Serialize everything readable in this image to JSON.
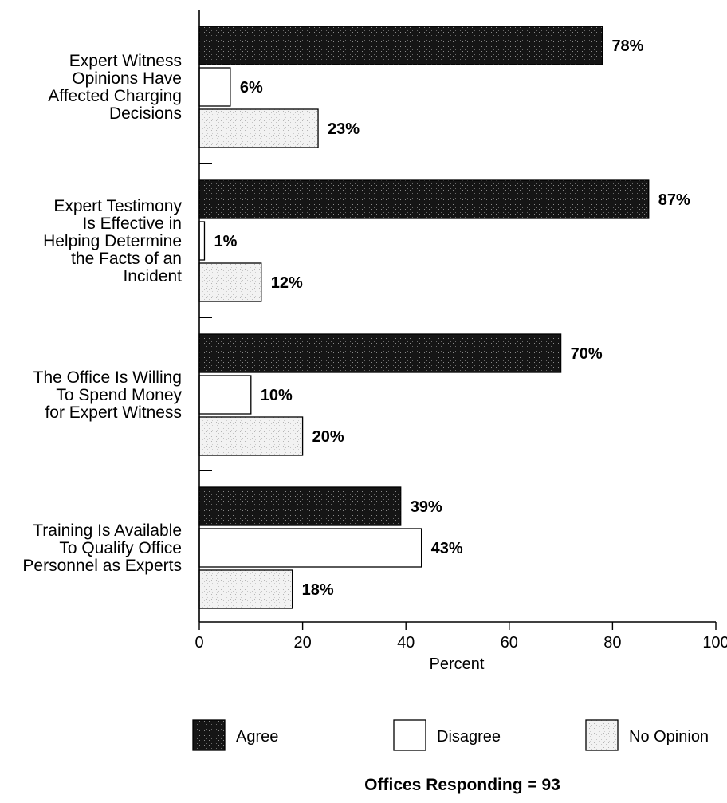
{
  "chart_data": {
    "type": "bar",
    "orientation": "horizontal",
    "categories": [
      [
        "Expert Witness",
        "Opinions Have",
        "Affected Charging",
        "Decisions"
      ],
      [
        "Expert Testimony",
        "Is Effective in",
        "Helping Determine",
        "the Facts of an",
        "Incident"
      ],
      [
        "The Office Is Willing",
        "To Spend Money",
        "for Expert Witness"
      ],
      [
        "Training Is Available",
        "To Qualify Office",
        "Personnel as Experts"
      ]
    ],
    "series": [
      {
        "name": "Agree",
        "values": [
          78,
          87,
          70,
          39
        ],
        "color": "#1a1a1a"
      },
      {
        "name": "Disagree",
        "values": [
          6,
          1,
          10,
          43
        ],
        "color": "#ffffff"
      },
      {
        "name": "No Opinion",
        "values": [
          23,
          12,
          20,
          18
        ],
        "color": "#ececec"
      }
    ],
    "value_labels": [
      [
        "78%",
        "6%",
        "23%"
      ],
      [
        "87%",
        "1%",
        "12%"
      ],
      [
        "70%",
        "10%",
        "20%"
      ],
      [
        "39%",
        "43%",
        "18%"
      ]
    ],
    "xlabel": "Percent",
    "xlim": [
      0,
      100
    ],
    "xticks": [
      "0",
      "20",
      "40",
      "60",
      "80",
      "100"
    ],
    "grid": false,
    "legend_placement": "bottom",
    "note": "Offices Responding = 93"
  }
}
